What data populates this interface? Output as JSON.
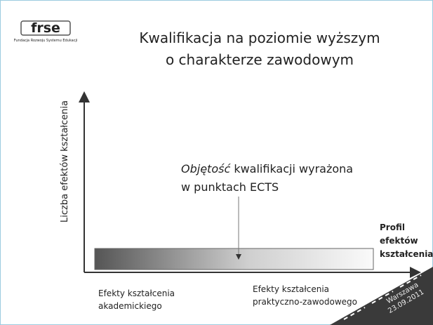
{
  "logo": {
    "mark": "frse",
    "caption": "Fundacja Rozwoju Systemu Edukacji"
  },
  "title": [
    "Kwalifikacja na poziomie wyższym",
    "o charakterze zawodowym"
  ],
  "y_axis_label": "Liczba efektów kształcenia",
  "annotation": {
    "emphasis": "Objętość",
    "rest": " kwalifikacji wyrażona",
    "line2": "w punktach ECTS"
  },
  "profile_label": [
    "Profil",
    "efektów",
    "kształcenia"
  ],
  "x_labels": {
    "left": [
      "Efekty kształcenia",
      "akademickiego"
    ],
    "right": [
      "Efekty kształcenia",
      "praktyczno-zawodowego"
    ]
  },
  "stamp": [
    "Warszawa",
    "23.09.2011"
  ]
}
